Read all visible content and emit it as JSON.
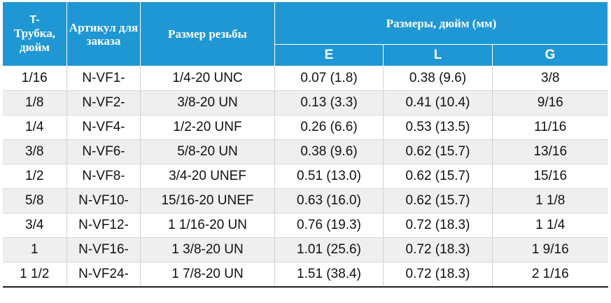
{
  "header": {
    "tube_prefix": "T-",
    "tube_rest": "Трубка, дюйм",
    "article": "Артикул для заказа",
    "thread": "Размер резьбы",
    "dims": "Размеры, дюйм (мм)",
    "e": "E",
    "l": "L",
    "g": "G"
  },
  "colors": {
    "header_bg": "#1f97d4",
    "row_alt_bg": "#efefef"
  },
  "rows": [
    {
      "tube": "1/16",
      "article": "N-VF1-",
      "thread": "1/4-20 UNC",
      "e": "0.07 (1.8)",
      "l": "0.38 (9.6)",
      "g": "3/8"
    },
    {
      "tube": "1/8",
      "article": "N-VF2-",
      "thread": "3/8-20 UN",
      "e": "0.13 (3.3)",
      "l": "0.41 (10.4)",
      "g": "9/16"
    },
    {
      "tube": "1/4",
      "article": "N-VF4-",
      "thread": "1/2-20 UNF",
      "e": "0.26 (6.6)",
      "l": "0.53 (13.5)",
      "g": "11/16"
    },
    {
      "tube": "3/8",
      "article": "N-VF6-",
      "thread": "5/8-20 UN",
      "e": "0.38 (9.6)",
      "l": "0.62 (15.7)",
      "g": "13/16"
    },
    {
      "tube": "1/2",
      "article": "N-VF8-",
      "thread": "3/4-20 UNEF",
      "e": "0.51 (13.0)",
      "l": "0.62 (15.7)",
      "g": "15/16"
    },
    {
      "tube": "5/8",
      "article": "N-VF10-",
      "thread": "15/16-20 UNEF",
      "e": "0.63 (16.0)",
      "l": "0.62 (15.7)",
      "g": "1 1/8"
    },
    {
      "tube": "3/4",
      "article": "N-VF12-",
      "thread": "1 1/16-20 UN",
      "e": "0.76 (19.3)",
      "l": "0.72 (18.3)",
      "g": "1 1/4"
    },
    {
      "tube": "1",
      "article": "N-VF16-",
      "thread": "1 3/8-20 UN",
      "e": "1.01 (25.6)",
      "l": "0.72 (18.3)",
      "g": "1 9/16"
    },
    {
      "tube": "1 1/2",
      "article": "N-VF24-",
      "thread": "1 7/8-20 UN",
      "e": "1.51 (38.4)",
      "l": "0.72 (18.3)",
      "g": "2 1/16"
    }
  ]
}
